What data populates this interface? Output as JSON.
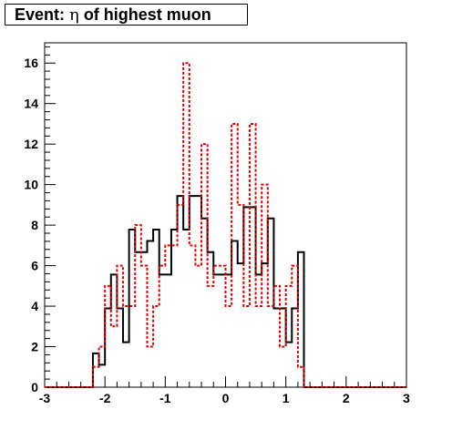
{
  "chart_data": {
    "type": "histogram",
    "title": "Event: η of highest muon",
    "title_prefix": "Event: ",
    "title_symbol": "η",
    "title_suffix": " of highest muon",
    "xlim": [
      -3,
      3
    ],
    "ylim": [
      0,
      17
    ],
    "x_ticks": [
      -3,
      -2,
      -1,
      0,
      1,
      2,
      3
    ],
    "y_ticks": [
      0,
      2,
      4,
      6,
      8,
      10,
      12,
      14,
      16
    ],
    "bin_width": 0.1,
    "bin_start": -3.0,
    "grid": false,
    "series": [
      {
        "style": "solid",
        "color": "#000000",
        "values": [
          0,
          0,
          0,
          0,
          0,
          0,
          0,
          0,
          1.67,
          1.11,
          3.89,
          5.56,
          3.89,
          2.22,
          7.78,
          6.67,
          6.67,
          7.22,
          7.78,
          5.56,
          5.56,
          7.78,
          9.44,
          7.78,
          9.44,
          9.44,
          8.33,
          6.67,
          5.56,
          5.56,
          5.56,
          7.22,
          6.11,
          8.89,
          8.89,
          5.56,
          6.11,
          8.33,
          3.89,
          3.89,
          2.22,
          3.89,
          6.67,
          0,
          0,
          0,
          0,
          0,
          0,
          0,
          0,
          0,
          0,
          0,
          0,
          0,
          0,
          0,
          0,
          0
        ]
      },
      {
        "style": "dashed",
        "color": "#e00000",
        "values": [
          0,
          0,
          0,
          0,
          0,
          0,
          0,
          0,
          1,
          2,
          5,
          3,
          6,
          4,
          4,
          8,
          6,
          2,
          4,
          6,
          7,
          7,
          9,
          16,
          7,
          6,
          12,
          5,
          6,
          6,
          4,
          13,
          9,
          4,
          13,
          4,
          10,
          4,
          5,
          2,
          5,
          6,
          1,
          0,
          0,
          0,
          0,
          0,
          0,
          0,
          0,
          0,
          0,
          0,
          0,
          0,
          0,
          0,
          0,
          0
        ]
      }
    ]
  }
}
